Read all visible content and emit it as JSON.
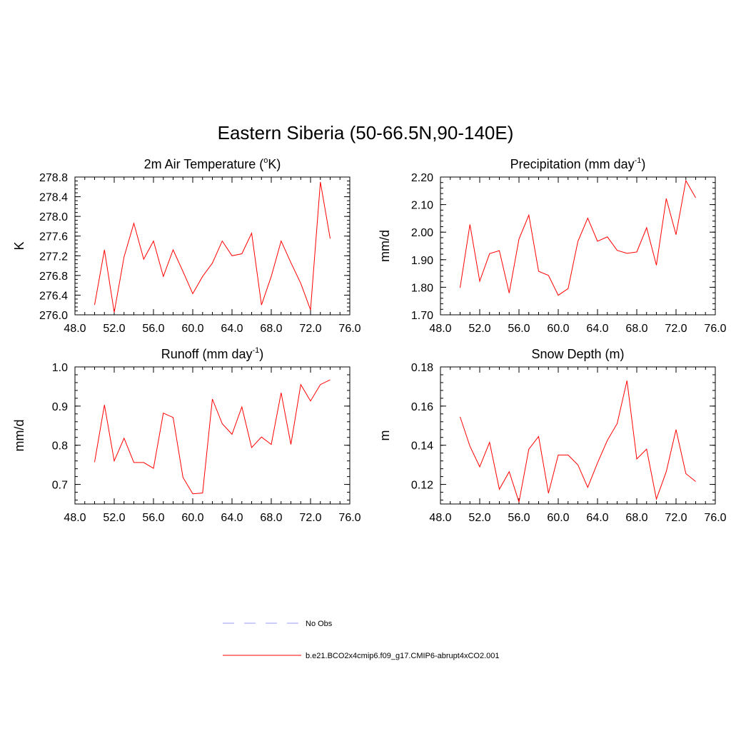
{
  "title": "Eastern Siberia (50-66.5N,90-140E)",
  "chart_data": [
    {
      "type": "line",
      "title": "2m Air Temperature (°K)",
      "title_main": "2m Air Temperature (",
      "title_sup": "o",
      "title_tail": "K)",
      "ylabel": "K",
      "xlim": [
        48,
        76
      ],
      "ylim": [
        276.0,
        278.8
      ],
      "xticks": [
        "48.0",
        "52.0",
        "56.0",
        "60.0",
        "64.0",
        "68.0",
        "72.0",
        "76.0"
      ],
      "yticks": [
        "276.0",
        "276.4",
        "276.8",
        "277.2",
        "277.6",
        "278.0",
        "278.4",
        "278.8"
      ],
      "series": [
        {
          "name": "b.e21.BCO2x4cmip6.f09_g17.CMIP6-abrupt4xCO2.001",
          "x": [
            50,
            51,
            52,
            53,
            54,
            55,
            56,
            57,
            58,
            59,
            60,
            61,
            62,
            63,
            64,
            65,
            66,
            67,
            68,
            69,
            70,
            71,
            72,
            73,
            74
          ],
          "y": [
            276.2,
            277.32,
            276.05,
            277.18,
            277.86,
            277.13,
            277.5,
            276.78,
            277.32,
            276.88,
            276.43,
            276.78,
            277.05,
            277.5,
            277.2,
            277.24,
            277.66,
            276.2,
            276.78,
            277.5,
            277.06,
            276.64,
            276.1,
            278.7,
            277.55
          ]
        }
      ]
    },
    {
      "type": "line",
      "title": "Precipitation (mm day-1)",
      "title_main": "Precipitation (mm day",
      "title_sup": "-1",
      "title_tail": ")",
      "ylabel": "mm/d",
      "xlim": [
        48,
        76
      ],
      "ylim": [
        1.7,
        2.2
      ],
      "xticks": [
        "48.0",
        "52.0",
        "56.0",
        "60.0",
        "64.0",
        "68.0",
        "72.0",
        "76.0"
      ],
      "yticks": [
        "1.70",
        "1.80",
        "1.90",
        "2.00",
        "2.10",
        "2.20"
      ],
      "series": [
        {
          "name": "b.e21.BCO2x4cmip6.f09_g17.CMIP6-abrupt4xCO2.001",
          "x": [
            50,
            51,
            52,
            53,
            54,
            55,
            56,
            57,
            58,
            59,
            60,
            61,
            62,
            63,
            64,
            65,
            66,
            67,
            68,
            69,
            70,
            71,
            72,
            73,
            74
          ],
          "y": [
            1.798,
            2.028,
            1.822,
            1.922,
            1.933,
            1.779,
            1.975,
            2.062,
            1.858,
            1.843,
            1.771,
            1.795,
            1.966,
            2.051,
            1.967,
            1.983,
            1.934,
            1.923,
            1.928,
            2.016,
            1.88,
            2.122,
            1.991,
            2.187,
            2.125
          ]
        }
      ]
    },
    {
      "type": "line",
      "title": "Runoff (mm day-1)",
      "title_main": "Runoff (mm day",
      "title_sup": "-1",
      "title_tail": ")",
      "ylabel": "mm/d",
      "xlim": [
        48,
        76
      ],
      "ylim": [
        0.65,
        1.0
      ],
      "xticks": [
        "48.0",
        "52.0",
        "56.0",
        "60.0",
        "64.0",
        "68.0",
        "72.0",
        "76.0"
      ],
      "yticks": [
        "0.7",
        "0.8",
        "0.9",
        "1.0"
      ],
      "series": [
        {
          "name": "b.e21.BCO2x4cmip6.f09_g17.CMIP6-abrupt4xCO2.001",
          "x": [
            50,
            51,
            52,
            53,
            54,
            55,
            56,
            57,
            58,
            59,
            60,
            61,
            62,
            63,
            64,
            65,
            66,
            67,
            68,
            69,
            70,
            71,
            72,
            73,
            74
          ],
          "y": [
            0.757,
            0.903,
            0.76,
            0.818,
            0.756,
            0.756,
            0.741,
            0.882,
            0.871,
            0.718,
            0.676,
            0.678,
            0.918,
            0.855,
            0.828,
            0.898,
            0.794,
            0.821,
            0.802,
            0.934,
            0.802,
            0.955,
            0.913,
            0.955,
            0.967
          ]
        }
      ]
    },
    {
      "type": "line",
      "title": "Snow Depth (m)",
      "title_main": "Snow Depth (m)",
      "title_sup": "",
      "title_tail": "",
      "ylabel": "m",
      "xlim": [
        48,
        76
      ],
      "ylim": [
        0.11,
        0.18
      ],
      "xticks": [
        "48.0",
        "52.0",
        "56.0",
        "60.0",
        "64.0",
        "68.0",
        "72.0",
        "76.0"
      ],
      "yticks": [
        "0.12",
        "0.14",
        "0.16",
        "0.18"
      ],
      "series": [
        {
          "name": "b.e21.BCO2x4cmip6.f09_g17.CMIP6-abrupt4xCO2.001",
          "x": [
            50,
            51,
            52,
            53,
            54,
            55,
            56,
            57,
            58,
            59,
            60,
            61,
            62,
            63,
            64,
            65,
            66,
            67,
            68,
            69,
            70,
            71,
            72,
            73,
            74
          ],
          "y": [
            0.1545,
            0.1395,
            0.129,
            0.1415,
            0.1175,
            0.1265,
            0.111,
            0.138,
            0.1445,
            0.1155,
            0.135,
            0.135,
            0.13,
            0.1185,
            0.131,
            0.1425,
            0.151,
            0.173,
            0.133,
            0.138,
            0.1125,
            0.1265,
            0.148,
            0.1255,
            0.1215
          ]
        }
      ]
    }
  ],
  "legend": {
    "placement": "bottom",
    "items": [
      {
        "label": "No Obs",
        "color": "#9999ff",
        "style": "dashed"
      },
      {
        "label": "b.e21.BCO2x4cmip6.f09_g17.CMIP6-abrupt4xCO2.001",
        "color": "#ff0000",
        "style": "solid"
      }
    ]
  },
  "colors": {
    "series": "#ff0000",
    "axes": "#000000"
  }
}
